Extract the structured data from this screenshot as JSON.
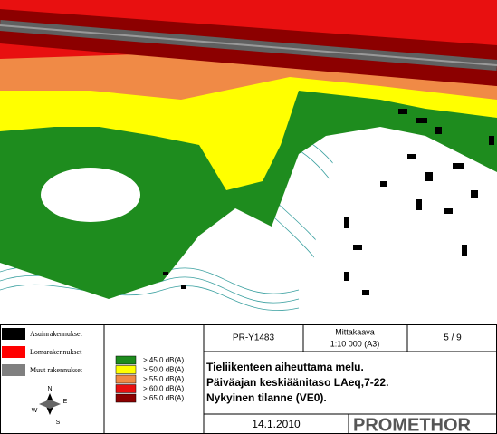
{
  "building_legend": [
    {
      "label": "Asuinrakennukset",
      "color": "#000000"
    },
    {
      "label": "Lomarakennukset",
      "color": "#ff0000"
    },
    {
      "label": "Muut rakennukset",
      "color": "#808080"
    }
  ],
  "noise_legend": [
    {
      "label": "> 45.0 dB(A)",
      "color": "#1e8c1e"
    },
    {
      "label": "> 50.0 dB(A)",
      "color": "#ffff00"
    },
    {
      "label": "> 55.0 dB(A)",
      "color": "#f08a46"
    },
    {
      "label": "> 60.0 dB(A)",
      "color": "#e81010"
    },
    {
      "label": "> 65.0 dB(A)",
      "color": "#8c0000"
    }
  ],
  "compass": {
    "n": "N",
    "e": "E",
    "s": "S",
    "w": "W"
  },
  "title_block": {
    "project": "PR-Y1483",
    "scale_label": "Mittakaava",
    "scale": "1:10 000 (A3)",
    "page": "5 / 9",
    "title_lines": [
      "Tieliikenteen aiheuttama melu.",
      "Päiväajan keskiäänitaso LAeq,7-22.",
      "Nykyinen tilanne (VE0)."
    ],
    "date": "14.1.2010",
    "company": "PROMETHOR"
  }
}
